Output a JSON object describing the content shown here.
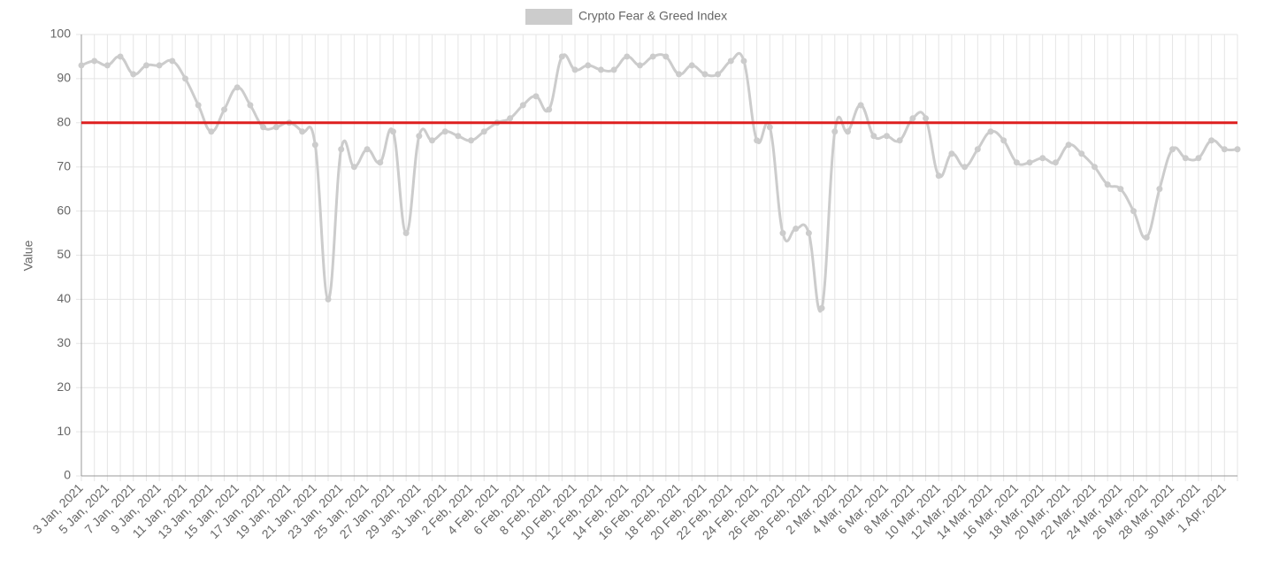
{
  "chart_data": {
    "type": "line",
    "y_label": "Value",
    "categories": [
      "3 Jan, 2021",
      null,
      "5 Jan, 2021",
      null,
      "7 Jan, 2021",
      null,
      "9 Jan, 2021",
      null,
      "11 Jan, 2021",
      null,
      "13 Jan, 2021",
      null,
      "15 Jan, 2021",
      null,
      "17 Jan, 2021",
      null,
      "19 Jan, 2021",
      null,
      "21 Jan, 2021",
      null,
      "23 Jan, 2021",
      null,
      "25 Jan, 2021",
      null,
      "27 Jan, 2021",
      null,
      "29 Jan, 2021",
      null,
      "31 Jan, 2021",
      null,
      "2 Feb, 2021",
      null,
      "4 Feb, 2021",
      null,
      "6 Feb, 2021",
      null,
      "8 Feb, 2021",
      null,
      "10 Feb, 2021",
      null,
      "12 Feb, 2021",
      null,
      "14 Feb, 2021",
      null,
      "16 Feb, 2021",
      null,
      "18 Feb, 2021",
      null,
      "20 Feb, 2021",
      null,
      "22 Feb, 2021",
      null,
      "24 Feb, 2021",
      null,
      "26 Feb, 2021",
      null,
      "28 Feb, 2021",
      null,
      "2 Mar, 2021",
      null,
      "4 Mar, 2021",
      null,
      "6 Mar, 2021",
      null,
      "8 Mar, 2021",
      null,
      "10 Mar, 2021",
      null,
      "12 Mar, 2021",
      null,
      "14 Mar, 2021",
      null,
      "16 Mar, 2021",
      null,
      "18 Mar, 2021",
      null,
      "20 Mar, 2021",
      null,
      "22 Mar, 2021",
      null,
      "24 Mar, 2021",
      null,
      "26 Mar, 2021",
      null,
      "28 Mar, 2021",
      null,
      "30 Mar, 2021",
      null,
      "1 Apr, 2021",
      null
    ],
    "series": [
      {
        "name": "Crypto Fear & Greed Index",
        "color": "#cccccc",
        "values": [
          93,
          94,
          93,
          95,
          91,
          93,
          93,
          94,
          90,
          84,
          78,
          83,
          88,
          84,
          79,
          79,
          80,
          78,
          75,
          40,
          74,
          70,
          74,
          71,
          78,
          55,
          77,
          76,
          78,
          77,
          76,
          78,
          80,
          81,
          84,
          86,
          83,
          95,
          92,
          93,
          92,
          92,
          95,
          93,
          95,
          95,
          91,
          93,
          91,
          91,
          94,
          94,
          76,
          79,
          55,
          56,
          55,
          38,
          78,
          78,
          84,
          77,
          77,
          76,
          81,
          81,
          68,
          73,
          70,
          74,
          78,
          76,
          71,
          71,
          72,
          71,
          75,
          73,
          70,
          66,
          65,
          60,
          54,
          65,
          74,
          72,
          72,
          76,
          74,
          74
        ]
      }
    ],
    "reference_line": {
      "value": 80,
      "color": "#dd1f1f"
    },
    "ylim": [
      0,
      100
    ],
    "yticks": [
      0,
      10,
      20,
      30,
      40,
      50,
      60,
      70,
      80,
      90,
      100
    ],
    "grid": true
  }
}
